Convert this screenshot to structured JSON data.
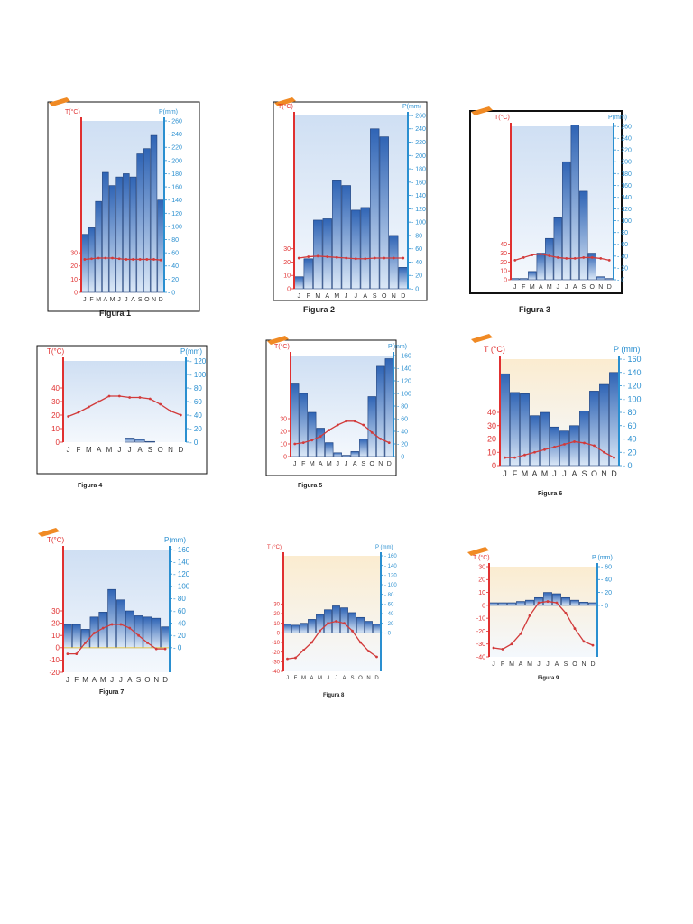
{
  "months_label": [
    "J",
    "F",
    "M",
    "A",
    "M",
    "J",
    "J",
    "A",
    "S",
    "O",
    "N",
    "D"
  ],
  "colors": {
    "temp_axis": "#e03030",
    "precip_axis": "#2a8fd0",
    "temp_line": "#d23a3a",
    "bar_top": "#dbe8f7",
    "bar_bottom": "#2f64b5",
    "bar_edge": "#1d3f7a",
    "plot_bg_blue": "#dfeaf8",
    "plot_bg_warm": "#fbecd0",
    "frame": "#111111",
    "ribbon": "#f08a24"
  },
  "chart_data": [
    {
      "type": "bar",
      "caption": "Figura 1",
      "temp_title": "T(°C)",
      "precip_title": "P(mm)",
      "categories": [
        "J",
        "F",
        "M",
        "A",
        "M",
        "J",
        "J",
        "A",
        "S",
        "O",
        "N",
        "D"
      ],
      "precip_ticks": [
        0,
        20,
        40,
        60,
        80,
        100,
        120,
        140,
        160,
        180,
        200,
        220,
        240,
        260
      ],
      "temp_ticks": [
        0,
        10,
        20,
        30
      ],
      "precip_lim": [
        0,
        260
      ],
      "temp_lim": [
        0,
        130
      ],
      "precip": [
        88,
        98,
        138,
        182,
        162,
        175,
        180,
        175,
        210,
        218,
        238,
        140
      ],
      "temp": [
        25,
        25.5,
        26,
        26,
        26,
        25.5,
        25,
        25,
        25,
        25,
        25,
        24.5
      ]
    },
    {
      "type": "bar",
      "caption": "Figura 2",
      "temp_title": "T(°C)",
      "precip_title": "P(mm)",
      "categories": [
        "J",
        "F",
        "M",
        "A",
        "M",
        "J",
        "J",
        "A",
        "S",
        "O",
        "N",
        "D"
      ],
      "precip_ticks": [
        0,
        20,
        40,
        60,
        80,
        100,
        120,
        140,
        160,
        180,
        200,
        220,
        240,
        260
      ],
      "temp_ticks": [
        0,
        10,
        20,
        30
      ],
      "precip_lim": [
        0,
        260
      ],
      "temp_lim": [
        0,
        130
      ],
      "precip": [
        18,
        45,
        103,
        105,
        162,
        155,
        118,
        122,
        240,
        228,
        80,
        32
      ],
      "temp": [
        23,
        24,
        24.5,
        24,
        23.5,
        23,
        22.5,
        22.5,
        23,
        23,
        23,
        23
      ]
    },
    {
      "type": "bar",
      "caption": "Figura 3",
      "temp_title": "T(°C)",
      "precip_title": "P(mm)",
      "categories": [
        "J",
        "F",
        "M",
        "A",
        "M",
        "J",
        "J",
        "A",
        "S",
        "O",
        "N",
        "D"
      ],
      "precip_ticks": [
        0,
        20,
        40,
        60,
        80,
        100,
        120,
        140,
        160,
        180,
        200,
        220,
        240,
        260
      ],
      "temp_ticks": [
        0,
        10,
        20,
        30,
        40
      ],
      "precip_lim": [
        0,
        260
      ],
      "temp_lim": [
        0,
        173
      ],
      "precip": [
        2,
        2,
        14,
        45,
        70,
        105,
        200,
        262,
        150,
        45,
        5,
        2
      ],
      "temp": [
        22,
        25,
        28,
        29,
        27,
        25,
        24,
        24,
        25,
        25,
        24,
        22
      ]
    },
    {
      "type": "bar",
      "caption": "Figura 4",
      "temp_title": "T(°C)",
      "precip_title": "P(mm)",
      "categories": [
        "J",
        "F",
        "M",
        "A",
        "M",
        "J",
        "J",
        "A",
        "S",
        "O",
        "N",
        "D"
      ],
      "precip_ticks": [
        0,
        20,
        40,
        60,
        80,
        100,
        120
      ],
      "temp_ticks": [
        0,
        10,
        20,
        30,
        40
      ],
      "precip_lim": [
        0,
        120
      ],
      "temp_lim": [
        0,
        60
      ],
      "precip": [
        0,
        0,
        0,
        0,
        0,
        0,
        6,
        4,
        1,
        0,
        0,
        0
      ],
      "temp": [
        19,
        22,
        26,
        30,
        34,
        34,
        33,
        33,
        32,
        28,
        23,
        20
      ]
    },
    {
      "type": "bar",
      "caption": "Figura 5",
      "temp_title": "T(°C)",
      "precip_title": "P(mm)",
      "categories": [
        "J",
        "F",
        "M",
        "A",
        "M",
        "J",
        "J",
        "A",
        "S",
        "O",
        "N",
        "D"
      ],
      "precip_ticks": [
        0,
        20,
        40,
        60,
        80,
        100,
        120,
        140,
        160
      ],
      "temp_ticks": [
        0,
        10,
        20,
        30
      ],
      "precip_lim": [
        0,
        160
      ],
      "temp_lim": [
        0,
        80
      ],
      "precip": [
        115,
        100,
        70,
        45,
        22,
        6,
        2,
        8,
        28,
        95,
        143,
        155
      ],
      "temp": [
        10,
        11,
        13,
        16,
        21,
        25,
        28,
        28,
        25,
        19,
        14,
        11
      ]
    },
    {
      "type": "bar",
      "caption": "Figura 6",
      "temp_title": "T (°C)",
      "precip_title": "P (mm)",
      "categories": [
        "J",
        "F",
        "M",
        "A",
        "M",
        "J",
        "J",
        "A",
        "S",
        "O",
        "N",
        "D"
      ],
      "precip_ticks": [
        0,
        20,
        40,
        60,
        80,
        100,
        120,
        140,
        160
      ],
      "temp_ticks": [
        0,
        10,
        20,
        30,
        40
      ],
      "precip_lim": [
        0,
        160
      ],
      "temp_lim": [
        0,
        80
      ],
      "precip": [
        138,
        110,
        108,
        75,
        80,
        58,
        52,
        60,
        82,
        112,
        122,
        140
      ],
      "temp": [
        6,
        6,
        8,
        10,
        12,
        14,
        16,
        18,
        17,
        15,
        10,
        6
      ]
    },
    {
      "type": "bar",
      "caption": "Figura 7",
      "temp_title": "T(°C)",
      "precip_title": "P(mm)",
      "categories": [
        "J",
        "F",
        "M",
        "A",
        "M",
        "J",
        "J",
        "A",
        "S",
        "O",
        "N",
        "D"
      ],
      "precip_ticks": [
        0,
        20,
        40,
        60,
        80,
        100,
        120,
        140,
        160
      ],
      "temp_ticks": [
        -20,
        -10,
        0,
        10,
        20,
        30
      ],
      "precip_lim": [
        -40,
        160
      ],
      "temp_lim": [
        -20,
        80
      ],
      "precip": [
        38,
        38,
        30,
        50,
        58,
        95,
        78,
        60,
        52,
        50,
        48,
        34
      ],
      "temp": [
        -5,
        -5,
        4,
        12,
        16,
        19,
        19,
        16,
        10,
        4,
        -1,
        -1
      ]
    },
    {
      "type": "bar",
      "caption": "Figura 8",
      "temp_title": "T (°C)",
      "precip_title": "P (mm)",
      "categories": [
        "J",
        "F",
        "M",
        "A",
        "M",
        "J",
        "J",
        "A",
        "S",
        "O",
        "N",
        "D"
      ],
      "precip_ticks": [
        0,
        20,
        40,
        60,
        80,
        100,
        120,
        140,
        160
      ],
      "temp_ticks": [
        -40,
        -30,
        -20,
        -10,
        0,
        10,
        20,
        30
      ],
      "precip_lim": [
        -80,
        160
      ],
      "temp_lim": [
        -40,
        80
      ],
      "precip": [
        18,
        16,
        20,
        28,
        38,
        48,
        56,
        52,
        42,
        32,
        24,
        18
      ],
      "temp": [
        -27,
        -26,
        -18,
        -10,
        2,
        10,
        12,
        10,
        2,
        -10,
        -19,
        -25
      ]
    },
    {
      "type": "bar",
      "caption": "Figura 9",
      "temp_title": "T (°C)",
      "precip_title": "P (mm)",
      "categories": [
        "J",
        "F",
        "M",
        "A",
        "M",
        "J",
        "J",
        "A",
        "S",
        "O",
        "N",
        "D"
      ],
      "precip_ticks": [
        0,
        20,
        40,
        60
      ],
      "temp_ticks": [
        -40,
        -30,
        -20,
        -10,
        0,
        10,
        20,
        30
      ],
      "precip_lim": [
        -80,
        60
      ],
      "temp_lim": [
        -40,
        30
      ],
      "precip": [
        4,
        4,
        4,
        6,
        8,
        12,
        20,
        18,
        12,
        8,
        5,
        4
      ],
      "temp": [
        -33,
        -34,
        -30,
        -22,
        -8,
        2,
        3,
        2,
        -6,
        -18,
        -28,
        -31
      ]
    }
  ]
}
